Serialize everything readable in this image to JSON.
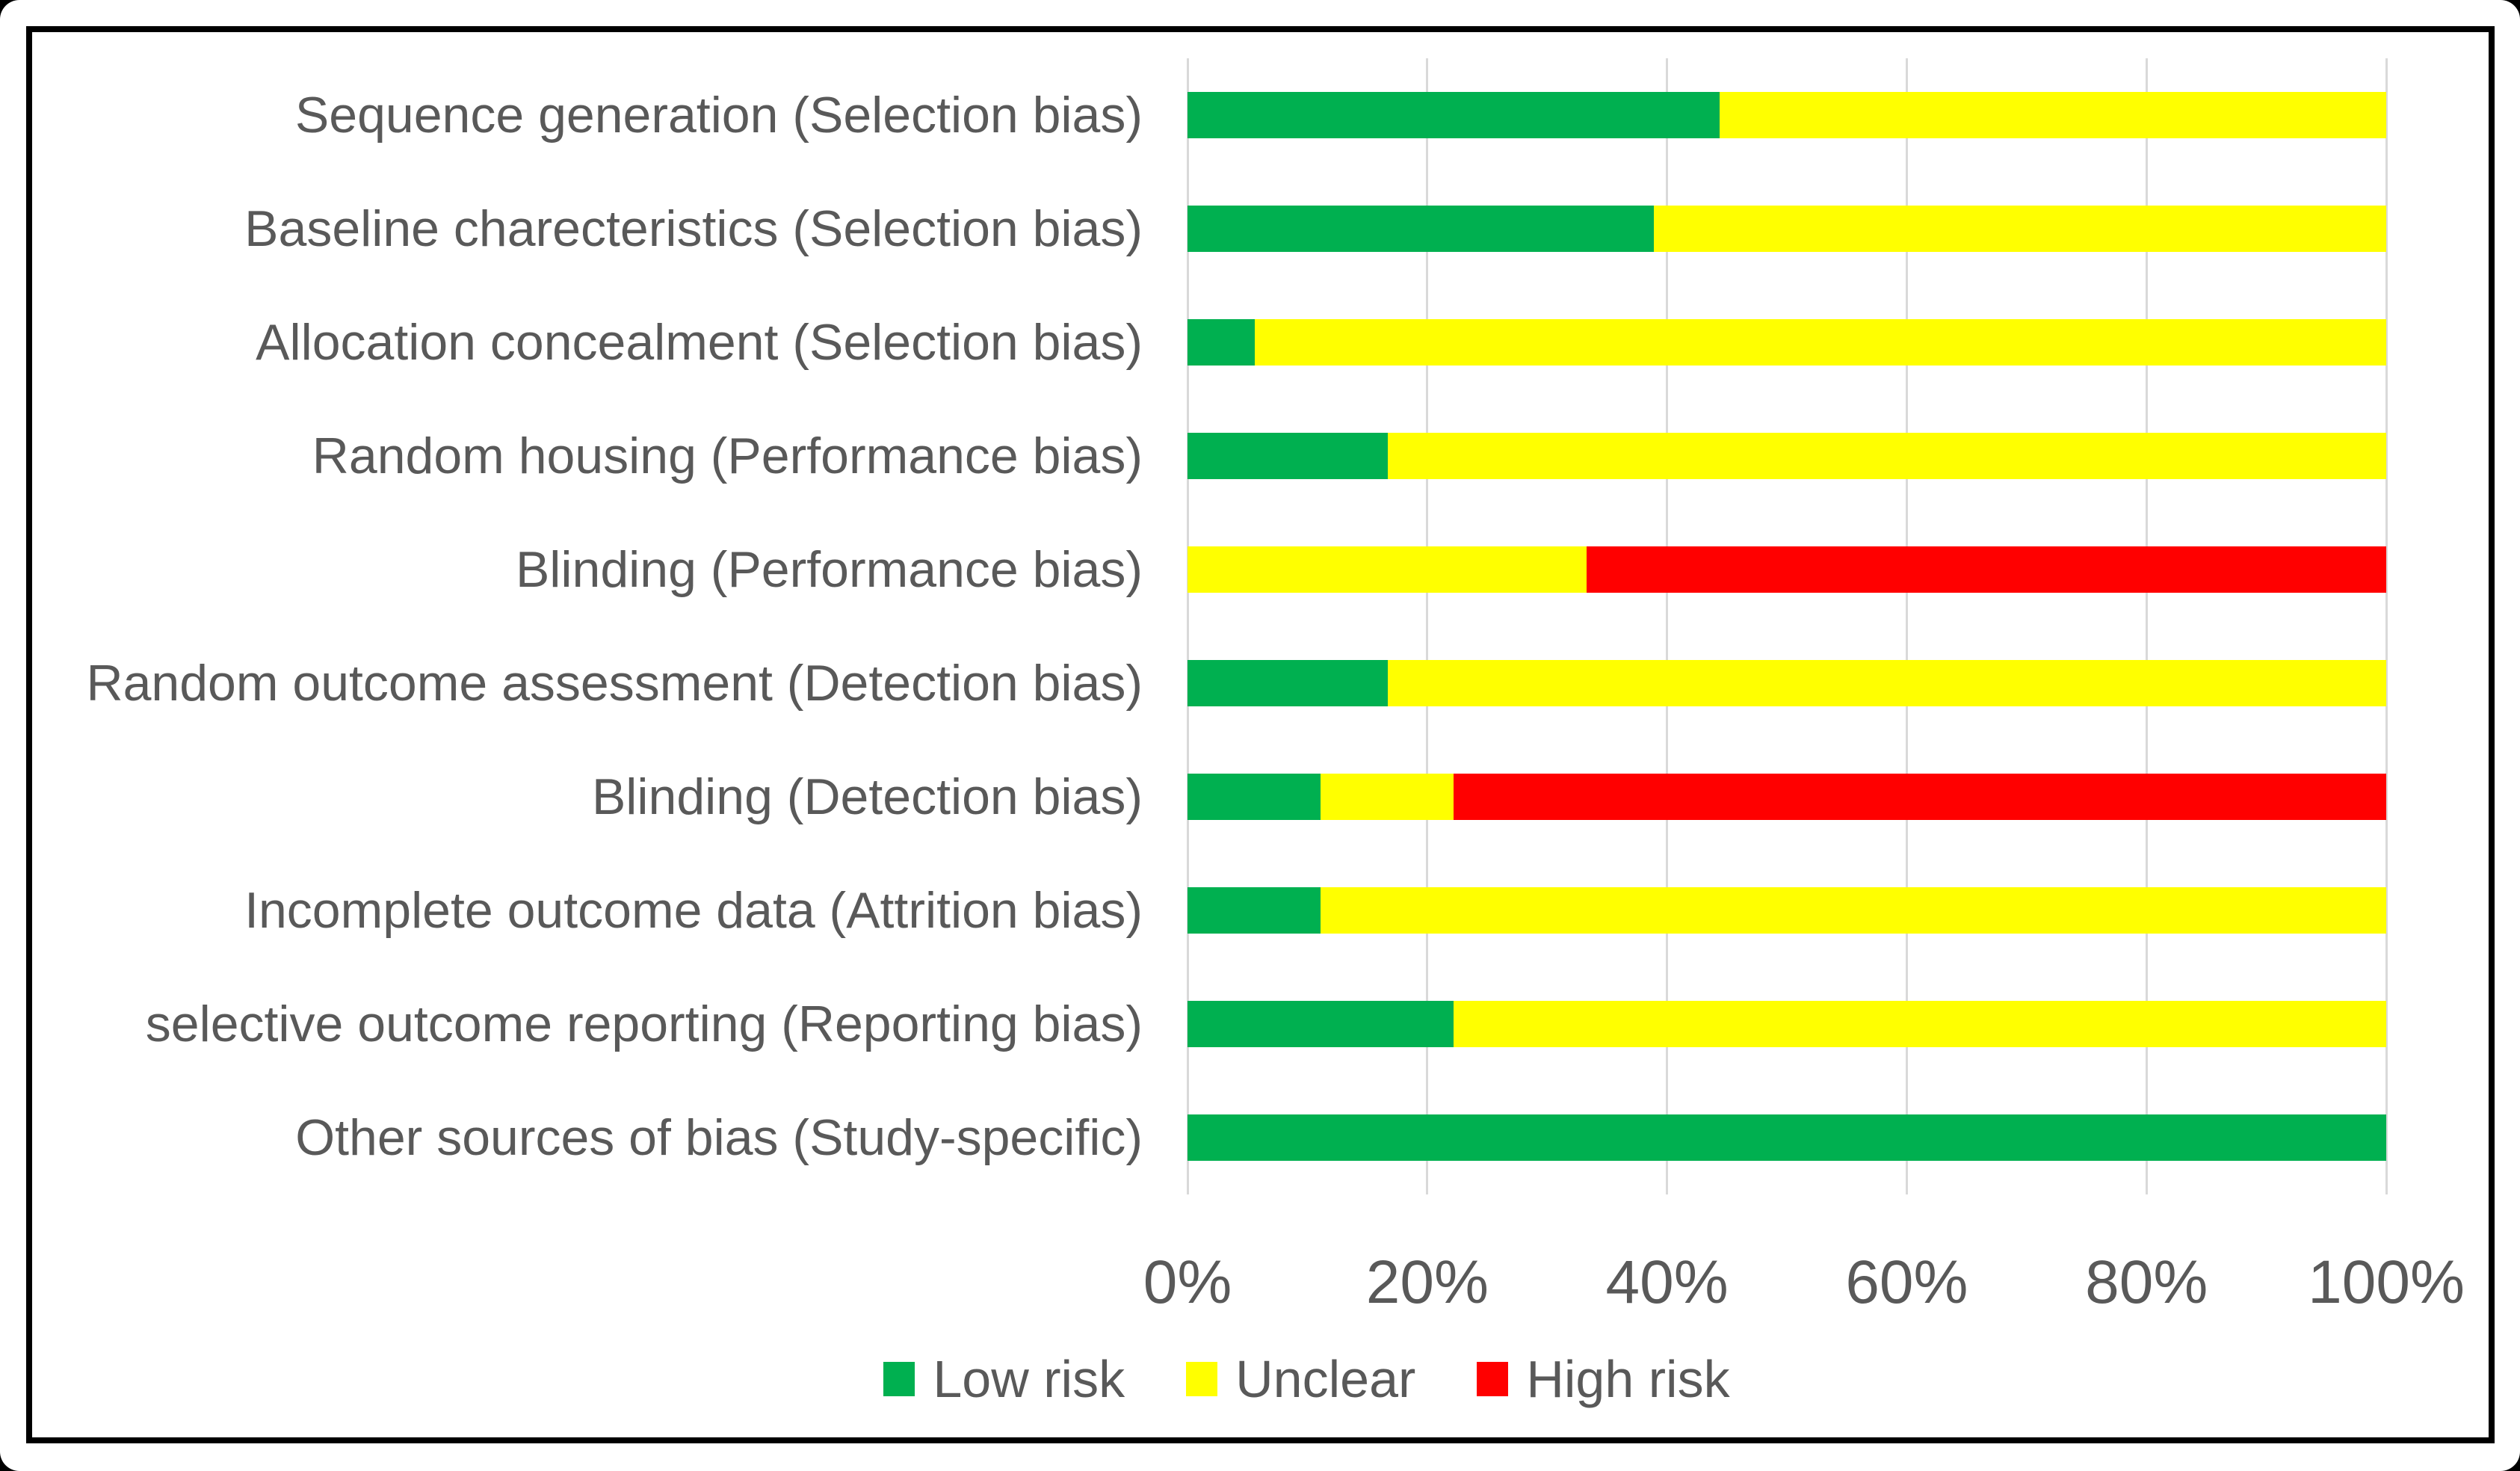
{
  "figure": {
    "background": "#ffffff",
    "border_color": "#000000",
    "text_color": "#595959",
    "gridline_color": "#d9d9d9"
  },
  "legend": {
    "items": [
      {
        "label": "Low risk",
        "color": "#00b050"
      },
      {
        "label": "Unclear",
        "color": "#ffff00"
      },
      {
        "label": "High risk",
        "color": "#ff0000"
      }
    ]
  },
  "chart_data": {
    "type": "bar",
    "orientation": "horizontal",
    "stacked": true,
    "unit": "percent of studies",
    "title": "",
    "xlabel": "",
    "ylabel": "",
    "xlim": [
      0,
      100
    ],
    "x_ticks": [
      "0%",
      "20%",
      "40%",
      "60%",
      "80%",
      "100%"
    ],
    "grid": "vertical",
    "legend_position": "bottom",
    "categories": [
      "Sequence generation (Selection bias)",
      "Baseline charecteristics (Selection bias)",
      "Allocation concealment (Selection bias)",
      "Random housing (Performance bias)",
      "Blinding (Performance bias)",
      "Random outcome assessment (Detection bias)",
      "Blinding (Detection bias)",
      "Incomplete outcome data (Attrition bias)",
      "selective outcome reporting (Reporting bias)",
      "Other sources of bias (Study-specific)"
    ],
    "series": [
      {
        "name": "Low risk",
        "color": "#00b050",
        "values": [
          44.4,
          38.9,
          5.6,
          16.7,
          0,
          16.7,
          11.1,
          11.1,
          22.2,
          100
        ]
      },
      {
        "name": "Unclear",
        "color": "#ffff00",
        "values": [
          55.6,
          61.1,
          94.4,
          83.3,
          33.3,
          83.3,
          11.1,
          88.9,
          77.8,
          0
        ]
      },
      {
        "name": "High risk",
        "color": "#ff0000",
        "values": [
          0,
          0,
          0,
          0,
          66.7,
          0,
          77.8,
          0,
          0,
          0
        ]
      }
    ]
  }
}
